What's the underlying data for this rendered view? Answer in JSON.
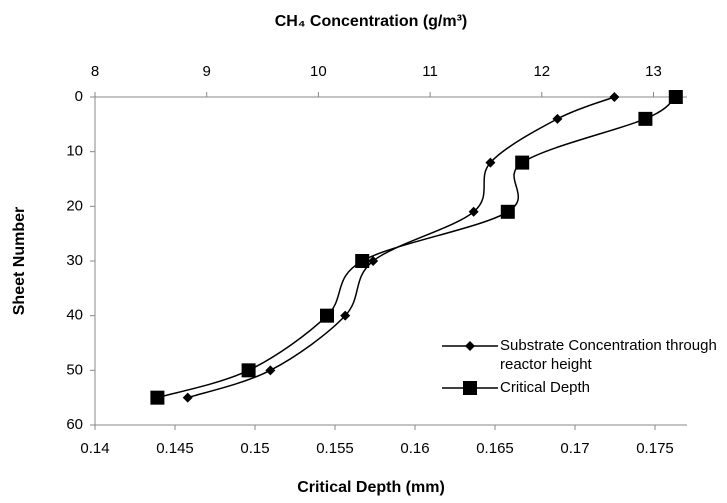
{
  "chart_data": {
    "type": "line",
    "x_top_label": "CH₄ Concentration (g/m³)",
    "x_label": "Critical Depth (mm)",
    "y_label": "Sheet Number",
    "y": [
      0,
      4,
      12,
      21,
      30,
      40,
      50,
      55
    ],
    "ylim": [
      0,
      60
    ],
    "yticks": [
      0,
      10,
      20,
      30,
      40,
      50,
      60
    ],
    "y_inverted": true,
    "x2lim": [
      8,
      13.3
    ],
    "x2ticks": [
      8,
      9,
      10,
      11,
      12,
      13
    ],
    "xlim": [
      0.14,
      0.177
    ],
    "xticks": [
      0.14,
      0.145,
      0.15,
      0.155,
      0.16,
      0.165,
      0.17,
      0.175
    ],
    "series": [
      {
        "name": "Substrate Concentration through reactor height",
        "color": "#000000",
        "marker": "diamond",
        "axis": "x2",
        "values": [
          12.65,
          12.14,
          11.54,
          11.39,
          10.49,
          10.24,
          9.57,
          8.83
        ]
      },
      {
        "name": "Critical Depth",
        "color": "#000000",
        "marker": "square",
        "axis": "x",
        "values": [
          0.1763,
          0.1744,
          0.1667,
          0.1658,
          0.1567,
          0.1545,
          0.1496,
          0.1439
        ]
      }
    ]
  }
}
